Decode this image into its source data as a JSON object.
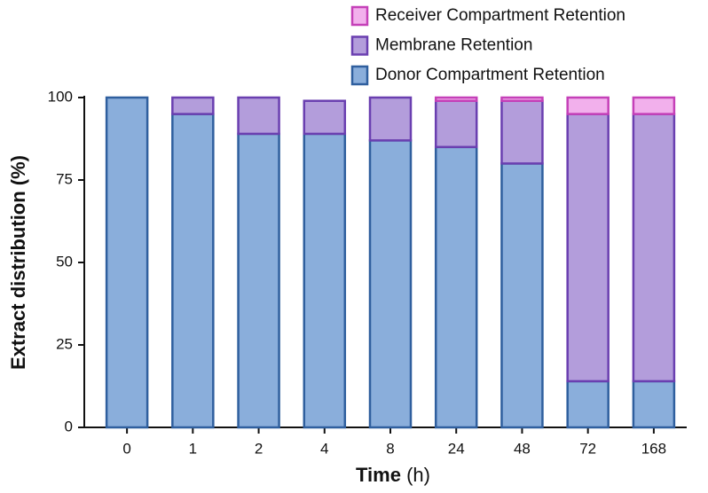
{
  "chart_data": {
    "type": "stacked_bar",
    "xlabel": {
      "bold": "Time",
      "unit": "(h)"
    },
    "ylabel": "Extract distribution (%)",
    "categories": [
      "0",
      "1",
      "2",
      "4",
      "8",
      "24",
      "48",
      "72",
      "168"
    ],
    "series": [
      {
        "name": "Donor Compartment Retention",
        "color": "#8aaedb",
        "edge": "#2f5f9e",
        "values": [
          100,
          95,
          89,
          89,
          87,
          85,
          80,
          14,
          14
        ]
      },
      {
        "name": "Membrane Retention",
        "color": "#b39ddb",
        "edge": "#6a3fb0",
        "values": [
          0,
          5,
          11,
          10,
          13,
          14,
          19,
          81,
          81
        ]
      },
      {
        "name": "Receiver Compartment Retention",
        "color": "#f2b0ec",
        "edge": "#c540b8",
        "values": [
          0,
          0,
          0,
          0,
          0,
          1,
          1,
          5,
          5
        ]
      }
    ],
    "ylim": [
      0,
      100
    ],
    "yticks": [
      0,
      25,
      50,
      75,
      100
    ],
    "grid": false
  }
}
